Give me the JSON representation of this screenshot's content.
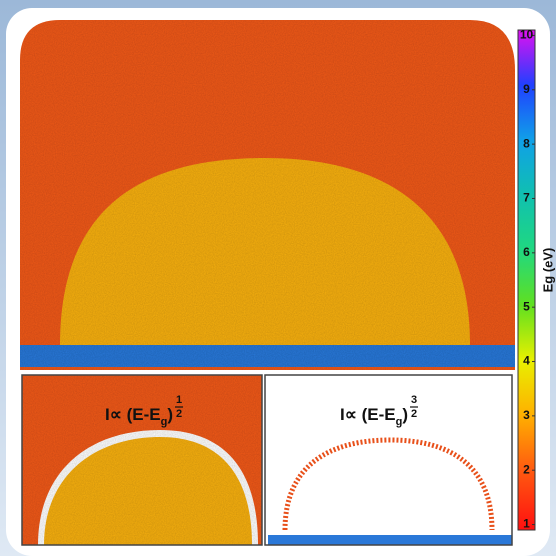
{
  "colorbar": {
    "label": "Eg (eV)",
    "lim": [
      0.9,
      10.1
    ],
    "ticks": [
      1,
      2,
      3,
      4,
      5,
      6,
      7,
      8,
      9,
      10
    ]
  },
  "insets": [
    {
      "prefix": "I∝ (E-E",
      "subscript": "g",
      "suffix": ")",
      "exp_num": "1",
      "exp_den": "2"
    },
    {
      "prefix": "I∝ (E-E",
      "subscript": "g",
      "suffix": ")",
      "exp_num": "3",
      "exp_den": "2"
    }
  ]
}
